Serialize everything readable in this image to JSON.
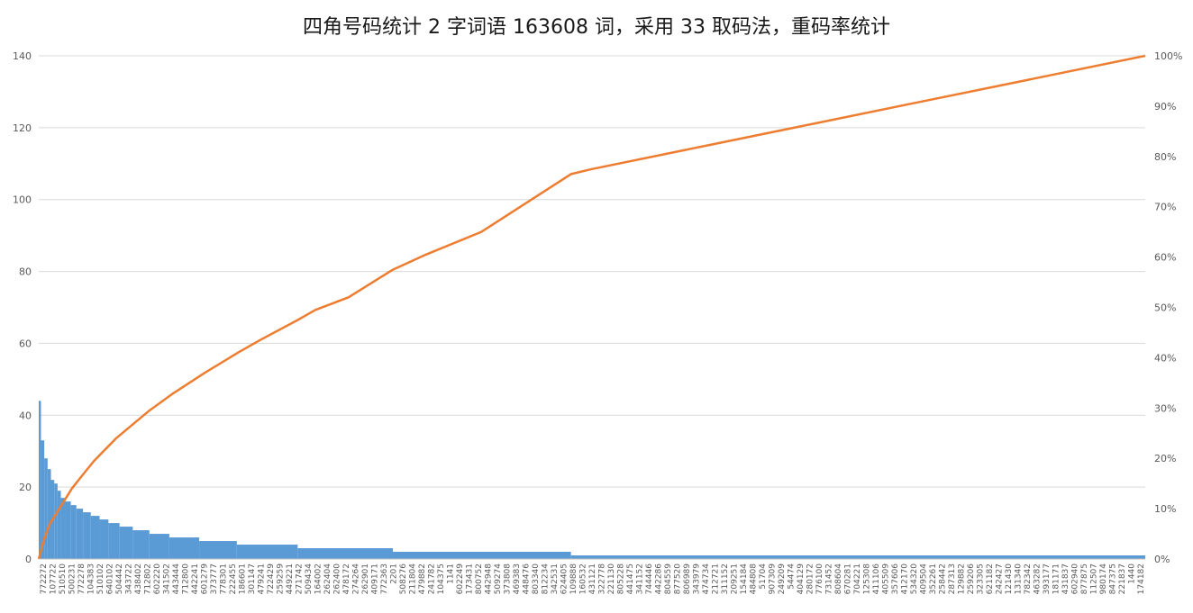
{
  "chart_data": {
    "type": "bar",
    "title": "四角号码统计 2 字词语 163608 词，采用 33 取码法，重码率统计",
    "ylim": [
      0,
      140
    ],
    "y_ticks": [
      0,
      20,
      40,
      60,
      80,
      100,
      120,
      140
    ],
    "y2lim": [
      0,
      1
    ],
    "y2_ticks": [
      "0%",
      "10%",
      "20%",
      "30%",
      "40%",
      "50%",
      "60%",
      "70%",
      "80%",
      "90%",
      "100%"
    ],
    "grid": true,
    "legend": "none",
    "colors": {
      "bars": "#5b9bd5",
      "cumulative_line": "#ed7d31",
      "grid": "#d9d9d9"
    },
    "categories": [
      "772272",
      "107722",
      "510510",
      "500231",
      "772278",
      "104383",
      "510102",
      "640102",
      "504442",
      "343722",
      "438402",
      "712802",
      "602220",
      "341502",
      "443444",
      "712800",
      "442241",
      "601279",
      "373777",
      "778301",
      "222455",
      "186601",
      "301147",
      "479241",
      "722429",
      "259259",
      "449221",
      "271742",
      "509434",
      "164002",
      "262404",
      "262400",
      "478172",
      "274264",
      "262901",
      "409171",
      "772363",
      "2201",
      "508276",
      "211804",
      "479882",
      "241782",
      "104375",
      "1141",
      "602249",
      "173431",
      "800752",
      "442948",
      "509274",
      "373808",
      "469383",
      "448476",
      "803340",
      "812234",
      "342531",
      "624405",
      "109888",
      "160532",
      "431121",
      "322778",
      "221130",
      "805228",
      "441475",
      "341152",
      "744446",
      "442286",
      "804559",
      "877520",
      "806989",
      "343979",
      "474734",
      "212721",
      "311152",
      "209251",
      "154184",
      "484808",
      "51704",
      "907309",
      "249209",
      "54474",
      "404129",
      "280172",
      "776100",
      "731452",
      "808604",
      "670281",
      "704221",
      "125308",
      "411106",
      "405509",
      "357606",
      "412170",
      "534320",
      "409504",
      "352261",
      "258442",
      "287313",
      "129882",
      "259206",
      "323305",
      "621182",
      "242427",
      "121430",
      "131340",
      "782342",
      "463282",
      "393177",
      "181171",
      "431837",
      "602940",
      "877875",
      "112507",
      "980174",
      "847375",
      "221837",
      "1440",
      "174182"
    ],
    "bar_segments": [
      {
        "from_pct": 0.0,
        "to_pct": 0.2,
        "value": 44
      },
      {
        "from_pct": 0.2,
        "to_pct": 0.5,
        "value": 33
      },
      {
        "from_pct": 0.5,
        "to_pct": 0.8,
        "value": 28
      },
      {
        "from_pct": 0.8,
        "to_pct": 1.1,
        "value": 25
      },
      {
        "from_pct": 1.1,
        "to_pct": 1.4,
        "value": 22
      },
      {
        "from_pct": 1.4,
        "to_pct": 1.7,
        "value": 21
      },
      {
        "from_pct": 1.7,
        "to_pct": 2.0,
        "value": 19
      },
      {
        "from_pct": 2.0,
        "to_pct": 2.4,
        "value": 17
      },
      {
        "from_pct": 2.4,
        "to_pct": 2.9,
        "value": 16
      },
      {
        "from_pct": 2.9,
        "to_pct": 3.4,
        "value": 15
      },
      {
        "from_pct": 3.4,
        "to_pct": 4.0,
        "value": 14
      },
      {
        "from_pct": 4.0,
        "to_pct": 4.7,
        "value": 13
      },
      {
        "from_pct": 4.7,
        "to_pct": 5.5,
        "value": 12
      },
      {
        "from_pct": 5.5,
        "to_pct": 6.3,
        "value": 11
      },
      {
        "from_pct": 6.3,
        "to_pct": 7.3,
        "value": 10
      },
      {
        "from_pct": 7.3,
        "to_pct": 8.5,
        "value": 9
      },
      {
        "from_pct": 8.5,
        "to_pct": 10.0,
        "value": 8
      },
      {
        "from_pct": 10.0,
        "to_pct": 11.8,
        "value": 7
      },
      {
        "from_pct": 11.8,
        "to_pct": 14.5,
        "value": 6
      },
      {
        "from_pct": 14.5,
        "to_pct": 17.9,
        "value": 5
      },
      {
        "from_pct": 17.9,
        "to_pct": 23.4,
        "value": 4
      },
      {
        "from_pct": 23.4,
        "to_pct": 32.0,
        "value": 3
      },
      {
        "from_pct": 32.0,
        "to_pct": 48.1,
        "value": 2
      },
      {
        "from_pct": 48.1,
        "to_pct": 100.0,
        "value": 1
      }
    ],
    "cumulative_points": [
      {
        "x_pct": 0,
        "y_pct": 0
      },
      {
        "x_pct": 0.5,
        "y_pct": 4
      },
      {
        "x_pct": 1,
        "y_pct": 7
      },
      {
        "x_pct": 2,
        "y_pct": 10.5
      },
      {
        "x_pct": 3,
        "y_pct": 14
      },
      {
        "x_pct": 4,
        "y_pct": 16.8
      },
      {
        "x_pct": 5,
        "y_pct": 19.5
      },
      {
        "x_pct": 7,
        "y_pct": 24
      },
      {
        "x_pct": 10,
        "y_pct": 29.5
      },
      {
        "x_pct": 12,
        "y_pct": 32.7
      },
      {
        "x_pct": 15,
        "y_pct": 37
      },
      {
        "x_pct": 18,
        "y_pct": 41
      },
      {
        "x_pct": 20,
        "y_pct": 43.5
      },
      {
        "x_pct": 23.4,
        "y_pct": 47.5
      },
      {
        "x_pct": 25,
        "y_pct": 49.5
      },
      {
        "x_pct": 28,
        "y_pct": 52
      },
      {
        "x_pct": 32,
        "y_pct": 57.5
      },
      {
        "x_pct": 35,
        "y_pct": 60.5
      },
      {
        "x_pct": 40,
        "y_pct": 65
      },
      {
        "x_pct": 48.1,
        "y_pct": 76.5
      },
      {
        "x_pct": 50,
        "y_pct": 77.5
      },
      {
        "x_pct": 60,
        "y_pct": 82
      },
      {
        "x_pct": 70,
        "y_pct": 86.5
      },
      {
        "x_pct": 80,
        "y_pct": 91
      },
      {
        "x_pct": 90,
        "y_pct": 95.5
      },
      {
        "x_pct": 100,
        "y_pct": 100
      }
    ]
  }
}
